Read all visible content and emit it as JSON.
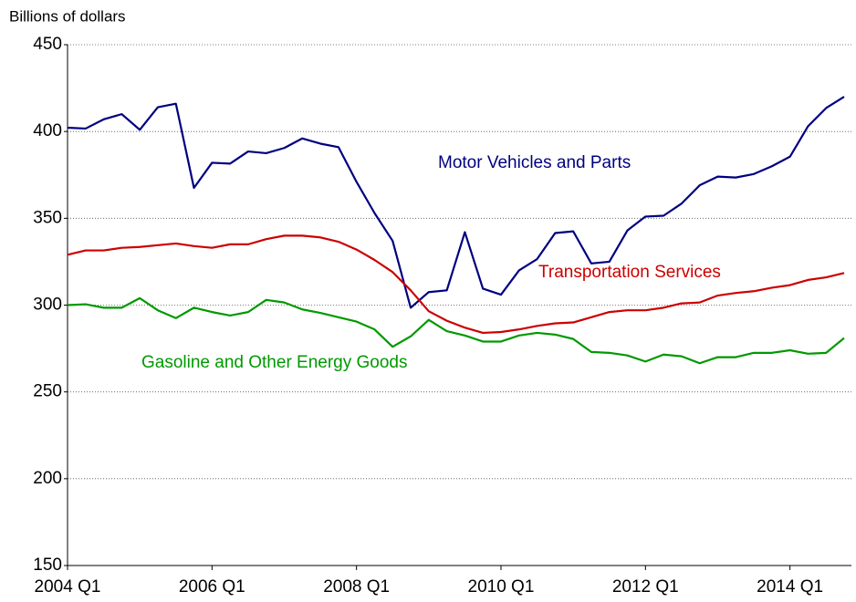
{
  "chart_data": {
    "type": "line",
    "y_label": "Billions of dollars",
    "categories": [
      "2004 Q1",
      null,
      null,
      null,
      null,
      null,
      null,
      null,
      "2006 Q1",
      null,
      null,
      null,
      null,
      null,
      null,
      null,
      "2008 Q1",
      null,
      null,
      null,
      null,
      null,
      null,
      null,
      "2010 Q1",
      null,
      null,
      null,
      null,
      null,
      null,
      null,
      "2012 Q1",
      null,
      null,
      null,
      null,
      null,
      null,
      null,
      "2014 Q1",
      null,
      null,
      null
    ],
    "ylim": [
      150,
      450
    ],
    "yticks": [
      150,
      200,
      250,
      300,
      350,
      400,
      450
    ],
    "grid": true,
    "series": [
      {
        "name": "Motor Vehicles and Parts",
        "color": "#000080",
        "values": [
          402.2,
          401.7,
          407,
          410,
          401,
          414,
          416,
          367.5,
          382,
          381.5,
          388.5,
          387.5,
          390.5,
          396,
          393,
          391,
          371,
          353,
          337,
          298.5,
          307.5,
          308.5,
          342,
          309.5,
          306,
          320,
          326.5,
          341.5,
          342.5,
          324,
          325,
          343,
          351,
          351.5,
          358.5,
          369,
          374,
          373.5,
          375.5,
          380,
          385.5,
          403,
          413.5,
          420
        ]
      },
      {
        "name": "Transportation Services",
        "color": "#cc0000",
        "values": [
          329,
          331.5,
          331.5,
          333,
          333.5,
          334.5,
          335.5,
          334,
          333,
          335,
          335,
          338,
          340,
          340,
          339,
          336.5,
          332,
          326,
          319,
          308.5,
          296.5,
          291,
          287,
          284,
          284.5,
          286,
          288,
          289.5,
          290,
          293,
          296,
          297,
          297,
          298.5,
          301,
          301.5,
          305.5,
          307,
          308,
          310,
          311.5,
          314.5,
          316,
          318.5
        ]
      },
      {
        "name": "Gasoline and Other Energy Goods",
        "color": "#009900",
        "values": [
          300,
          300.5,
          298.5,
          298.5,
          304,
          297,
          292.5,
          298.5,
          296,
          294,
          296,
          303,
          301.5,
          297.5,
          295.5,
          293,
          290.5,
          286,
          276,
          282,
          291.5,
          285,
          282.5,
          279,
          279,
          282.5,
          284,
          283,
          280.5,
          273,
          272.5,
          271,
          267.5,
          271.5,
          270.5,
          266.5,
          270,
          270,
          272.5,
          272.5,
          274,
          272,
          272.5,
          281
        ]
      }
    ]
  }
}
